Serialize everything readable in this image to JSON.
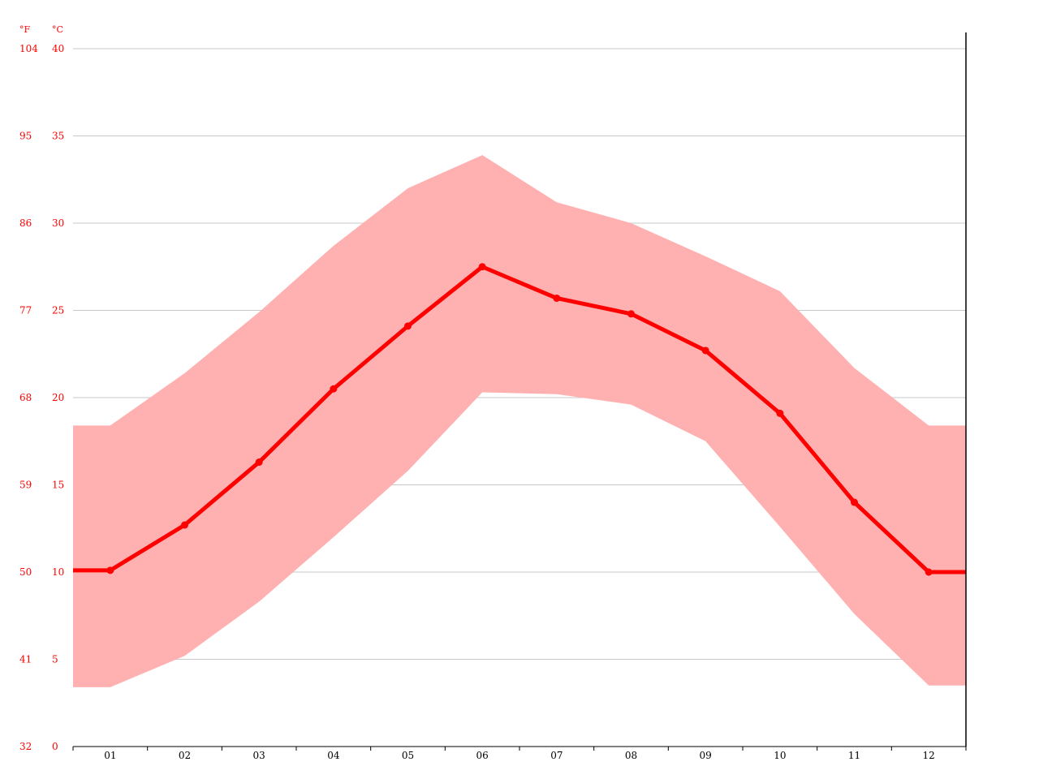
{
  "chart_data": {
    "type": "line",
    "categories": [
      "01",
      "02",
      "03",
      "04",
      "05",
      "06",
      "07",
      "08",
      "09",
      "10",
      "11",
      "12"
    ],
    "series": [
      {
        "role": "average",
        "values": [
          10.1,
          12.7,
          16.3,
          20.5,
          24.1,
          27.5,
          25.7,
          24.8,
          22.7,
          19.1,
          14.0,
          10.0
        ]
      },
      {
        "role": "max",
        "values": [
          18.4,
          21.4,
          24.9,
          28.7,
          32.0,
          33.9,
          31.2,
          30.0,
          28.1,
          26.1,
          21.7,
          18.4
        ]
      },
      {
        "role": "min",
        "values": [
          3.4,
          5.2,
          8.3,
          12.0,
          15.8,
          20.3,
          20.2,
          19.6,
          17.5,
          12.6,
          7.6,
          3.5
        ]
      }
    ],
    "y_celsius": {
      "unit": "°C",
      "ticks": [
        "0",
        "5",
        "10",
        "15",
        "20",
        "25",
        "30",
        "35",
        "40"
      ],
      "ylim": [
        0,
        40
      ]
    },
    "y_fahrenheit": {
      "unit": "°F",
      "ticks": [
        "32",
        "41",
        "50",
        "59",
        "68",
        "77",
        "86",
        "95",
        "104"
      ]
    },
    "grid": true,
    "colors": {
      "line": "#ff0000",
      "band": "#ffb1b1",
      "grid": "#c8c8c8",
      "axis": "#000000",
      "tick_text": "#ff0000",
      "x_text": "#000000"
    }
  }
}
